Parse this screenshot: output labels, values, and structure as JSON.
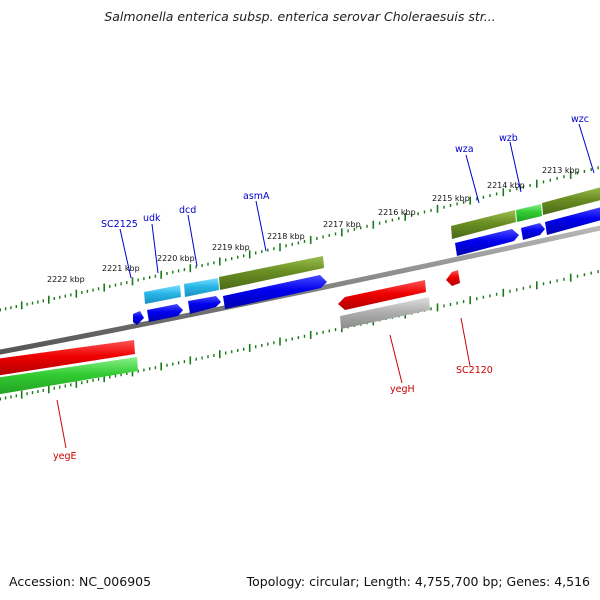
{
  "header": {
    "title": "Salmonella enterica subsp. enterica serovar Choleraesuis str..."
  },
  "footer": {
    "accession": "Accession: NC_006905",
    "topology": "Topology: circular; Length: 4,755,700 bp; Genes: 4,516"
  },
  "scale": [
    "2222 kbp",
    "2221 kbp",
    "2220 kbp",
    "2219 kbp",
    "2218 kbp",
    "2217 kbp",
    "2216 kbp",
    "2215 kbp",
    "2214 kbp",
    "2213 kbp"
  ],
  "genes": [
    {
      "name": "SC2125",
      "color": "#0000cc"
    },
    {
      "name": "udk",
      "color": "#0000cc"
    },
    {
      "name": "dcd",
      "color": "#0000cc"
    },
    {
      "name": "asmA",
      "color": "#0000cc"
    },
    {
      "name": "wza",
      "color": "#0000cc"
    },
    {
      "name": "wzb",
      "color": "#0000cc"
    },
    {
      "name": "wzc",
      "color": "#0000cc"
    },
    {
      "name": "yegH",
      "color": "#cc0000"
    },
    {
      "name": "SC2120",
      "color": "#cc0000"
    },
    {
      "name": "yegE",
      "color": "#cc0000"
    }
  ],
  "colors": {
    "backbone": "#808080",
    "ticks": "#1a7a1a",
    "forward": "#0000ee",
    "reverse": "#ee0000",
    "cyan": "#29b6e8",
    "olive": "#6b8e23",
    "green": "#33cc33",
    "grey": "#b0b0b0"
  }
}
